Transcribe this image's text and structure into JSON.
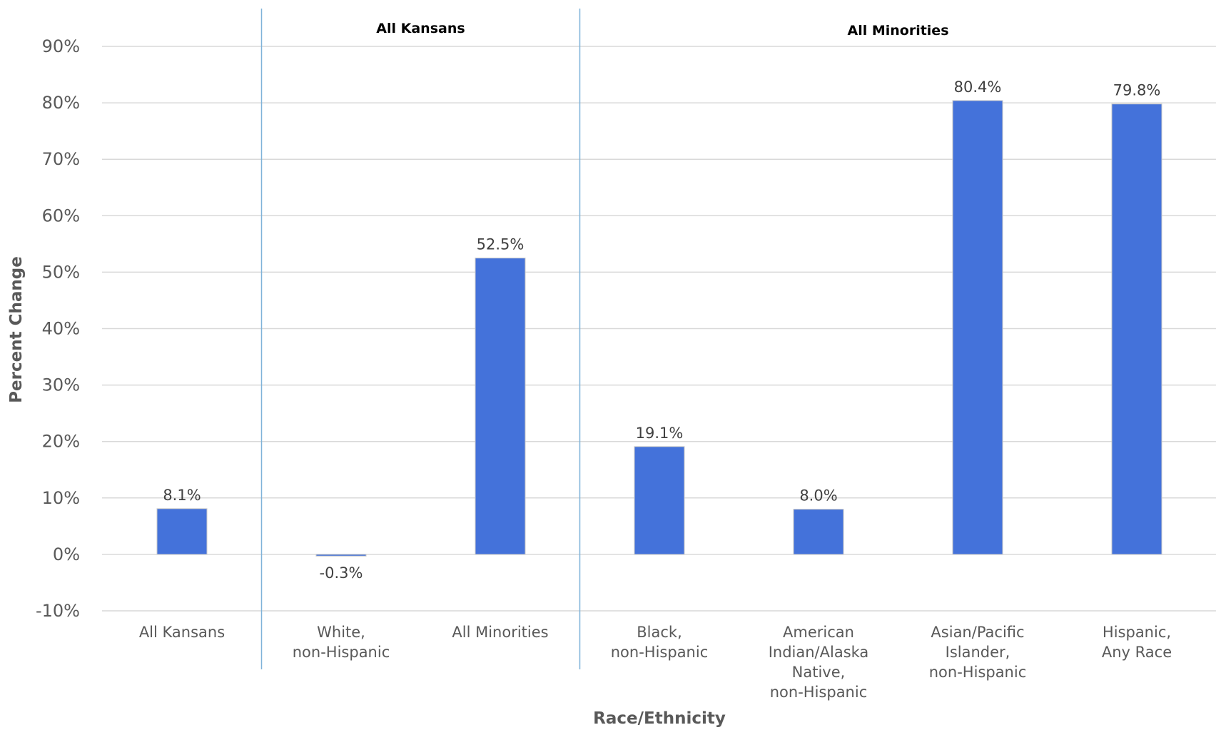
{
  "chart_data": {
    "type": "bar",
    "title": "",
    "xlabel": "Race/Ethnicity",
    "ylabel": "Percent Change",
    "ylim": [
      -10,
      90
    ],
    "yticks": [
      -10,
      0,
      10,
      20,
      30,
      40,
      50,
      60,
      70,
      80,
      90
    ],
    "ytick_labels": [
      "-10%",
      "0%",
      "10%",
      "20%",
      "30%",
      "40%",
      "50%",
      "60%",
      "70%",
      "80%",
      "90%"
    ],
    "categories": [
      [
        "All Kansans"
      ],
      [
        "White,",
        "non-Hispanic"
      ],
      [
        "All Minorities"
      ],
      [
        "Black,",
        "non-Hispanic"
      ],
      [
        "American",
        "Indian/Alaska",
        "Native,",
        "non-Hispanic"
      ],
      [
        "Asian/Pacific",
        "Islander,",
        "non-Hispanic"
      ],
      [
        "Hispanic,",
        "Any Race"
      ]
    ],
    "values": [
      8.1,
      -0.3,
      52.5,
      19.1,
      8.0,
      80.4,
      79.8
    ],
    "data_labels": [
      "8.1%",
      "-0.3%",
      "52.5%",
      "19.1%",
      "8.0%",
      "80.4%",
      "79.8%"
    ],
    "groups": [
      {
        "label": "All Kansans",
        "start": 1,
        "end": 2
      },
      {
        "label": "All Minorities",
        "start": 3,
        "end": 6
      }
    ],
    "bar_color": "#4472DA",
    "grid": true,
    "legend": "none"
  }
}
